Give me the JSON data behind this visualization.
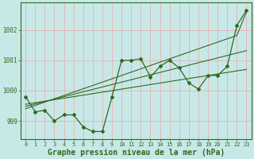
{
  "background_color": "#c8e8e8",
  "plot_bg_color": "#c8e8e8",
  "grid_color": "#e8b0b0",
  "line_color": "#2d6b1e",
  "xlabel": "Graphe pression niveau de la mer (hPa)",
  "xlabel_fontsize": 7,
  "ylim": [
    998.4,
    1002.9
  ],
  "xlim": [
    -0.5,
    23.5
  ],
  "yticks": [
    999,
    1000,
    1001,
    1002
  ],
  "xticks": [
    0,
    1,
    2,
    3,
    4,
    5,
    6,
    7,
    8,
    9,
    10,
    11,
    12,
    13,
    14,
    15,
    16,
    17,
    18,
    19,
    20,
    21,
    22,
    23
  ],
  "series_main": [
    999.8,
    999.3,
    999.35,
    999.0,
    999.2,
    999.2,
    998.8,
    998.65,
    998.65,
    999.8,
    1001.0,
    1001.0,
    1001.05,
    1000.45,
    1000.8,
    1001.0,
    1000.75,
    1000.25,
    1000.05,
    1000.5,
    1000.5,
    1000.8,
    1002.15,
    1002.65
  ],
  "series_trend1": [
    999.55,
    999.6,
    999.65,
    999.7,
    999.75,
    999.8,
    999.85,
    999.9,
    999.95,
    1000.0,
    1000.05,
    1000.1,
    1000.15,
    1000.2,
    1000.25,
    1000.3,
    1000.35,
    1000.4,
    1000.45,
    1000.5,
    1000.55,
    1000.6,
    1000.65,
    1000.7
  ],
  "series_trend2": [
    999.48,
    999.56,
    999.64,
    999.72,
    999.8,
    999.88,
    999.96,
    1000.04,
    1000.12,
    1000.2,
    1000.28,
    1000.36,
    1000.44,
    1000.52,
    1000.6,
    1000.68,
    1000.76,
    1000.84,
    1000.92,
    1001.0,
    1001.08,
    1001.16,
    1001.24,
    1001.32
  ],
  "series_trend3": [
    999.4,
    999.51,
    999.62,
    999.73,
    999.84,
    999.95,
    1000.06,
    1000.17,
    1000.28,
    1000.39,
    1000.5,
    1000.61,
    1000.72,
    1000.83,
    1000.94,
    1001.05,
    1001.16,
    1001.27,
    1001.38,
    1001.49,
    1001.6,
    1001.71,
    1001.82,
    1002.6
  ]
}
